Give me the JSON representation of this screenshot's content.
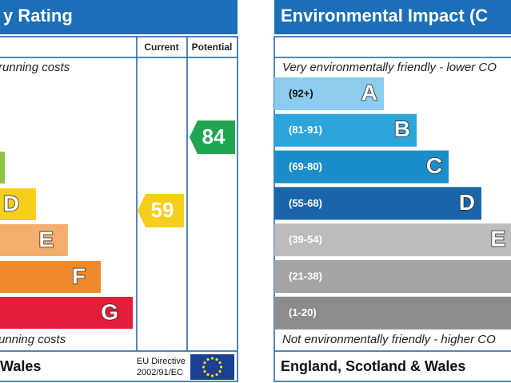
{
  "left": {
    "title": "y Rating",
    "current_label": "Current",
    "potential_label": "Potential",
    "top_note": "running costs",
    "bottom_note": "unning costs",
    "bands": [
      "D",
      "E",
      "F",
      "G"
    ],
    "current": "59",
    "potential": "84",
    "footer": "Wales",
    "directive_1": "EU Directive",
    "directive_2": "2002/91/EC"
  },
  "right": {
    "title": "Environmental Impact (C",
    "top_note": "Very environmentally friendly - lower CO",
    "bottom_note": "Not environmentally friendly - higher CO",
    "bands": [
      {
        "range": "(92+)",
        "letter": "A"
      },
      {
        "range": "(81-91)",
        "letter": "B"
      },
      {
        "range": "(69-80)",
        "letter": "C"
      },
      {
        "range": "(55-68)",
        "letter": "D"
      },
      {
        "range": "(39-54)",
        "letter": "E"
      },
      {
        "range": "(21-38)"
      },
      {
        "range": "(1-20)"
      }
    ],
    "footer": "England, Scotland & Wales"
  }
}
